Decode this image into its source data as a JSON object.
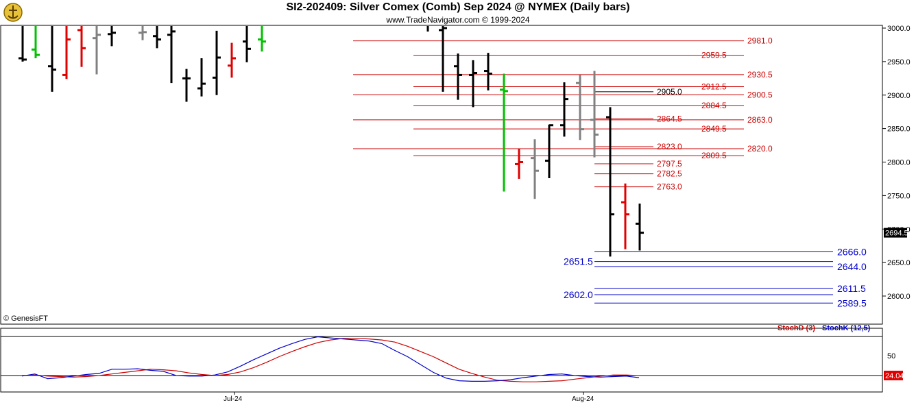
{
  "header": {
    "title": "SI2-202409:  Silver Comex (Comb) Sep 2024 @ NYMEX  (Daily bars)",
    "subtitle": "www.TradeNavigator.com © 1999-2024",
    "watermark": "© GenesisFT"
  },
  "colors": {
    "up": "#000000",
    "down_red": "#e00000",
    "gray": "#808080",
    "green": "#00c000",
    "resistance": "#cc0000",
    "support": "#0000cc",
    "stoch_d": "#cc0000",
    "stoch_k": "#0000cc"
  },
  "chart_data": [
    {
      "type": "ohlc",
      "title": "SI2-202409:  Silver Comex (Comb) Sep 2024 @ NYMEX  (Daily bars)",
      "ylim": [
        2560,
        3010
      ],
      "yticks": [
        "3000.0",
        "2950.0",
        "2900.0",
        "2850.0",
        "2800.0",
        "2750.0",
        "2700.0",
        "2650.0",
        "2600.0"
      ],
      "xticks": [
        "Jul-24",
        "Aug-24"
      ],
      "last_price": "2694.5",
      "bars": [
        {
          "o": 2955,
          "h": 3010,
          "l": 2950,
          "c": 2953,
          "color": "up"
        },
        {
          "o": 2968,
          "h": 3010,
          "l": 2955,
          "c": 2960,
          "color": "green"
        },
        {
          "o": 2943,
          "h": 3010,
          "l": 2905,
          "c": 2938,
          "color": "up"
        },
        {
          "o": 2930,
          "h": 3005,
          "l": 2924,
          "c": 2983,
          "color": "down_red"
        },
        {
          "o": 2997,
          "h": 3005,
          "l": 2942,
          "c": 2970,
          "color": "down_red"
        },
        {
          "o": 2985,
          "h": 3005,
          "l": 2931,
          "c": 2990,
          "color": "gray"
        },
        {
          "o": 2991,
          "h": 3010,
          "l": 2973,
          "c": 2993,
          "color": "up"
        },
        {
          "o": 2993,
          "h": 3010,
          "l": 2982,
          "c": 2994,
          "color": "gray"
        },
        {
          "o": 2988,
          "h": 3010,
          "l": 2970,
          "c": 2983,
          "color": "up"
        },
        {
          "o": 2990,
          "h": 3010,
          "l": 2918,
          "c": 2995,
          "color": "up"
        },
        {
          "o": 2925,
          "h": 2939,
          "l": 2890,
          "c": 2925,
          "color": "up"
        },
        {
          "o": 2910,
          "h": 2955,
          "l": 2898,
          "c": 2917,
          "color": "up"
        },
        {
          "o": 2926,
          "h": 2996,
          "l": 2900,
          "c": 2956,
          "color": "up"
        },
        {
          "o": 2944,
          "h": 2978,
          "l": 2926,
          "c": 2955,
          "color": "down_red"
        },
        {
          "o": 2980,
          "h": 3005,
          "l": 2949,
          "c": 2969,
          "color": "up"
        },
        {
          "o": 2983,
          "h": 3010,
          "l": 2965,
          "c": 2980,
          "color": "green"
        },
        {
          "o": 2997,
          "h": 3010,
          "l": 2905,
          "c": 3000,
          "color": "up"
        },
        {
          "o": 2943,
          "h": 2962,
          "l": 2893,
          "c": 2930,
          "color": "up"
        },
        {
          "o": 2930,
          "h": 2952,
          "l": 2882,
          "c": 2933,
          "color": "up"
        },
        {
          "o": 2936,
          "h": 2963,
          "l": 2907,
          "c": 2932,
          "color": "up"
        },
        {
          "o": 2908,
          "h": 2932,
          "l": 2756,
          "c": 2906,
          "color": "green"
        },
        {
          "o": 2797,
          "h": 2820,
          "l": 2775,
          "c": 2800,
          "color": "down_red"
        },
        {
          "o": 2806,
          "h": 2834,
          "l": 2745,
          "c": 2787,
          "color": "gray"
        },
        {
          "o": 2802,
          "h": 2856,
          "l": 2776,
          "c": 2855,
          "color": "up"
        },
        {
          "o": 2855,
          "h": 2919,
          "l": 2838,
          "c": 2894,
          "color": "up"
        },
        {
          "o": 2918,
          "h": 2930,
          "l": 2833,
          "c": 2849,
          "color": "gray"
        },
        {
          "o": 2863,
          "h": 2936,
          "l": 2807,
          "c": 2841,
          "color": "gray"
        },
        {
          "o": 2867,
          "h": 2882,
          "l": 2659,
          "c": 2722,
          "color": "up"
        },
        {
          "o": 2740,
          "h": 2768,
          "l": 2670,
          "c": 2722,
          "color": "down_red"
        },
        {
          "o": 2708,
          "h": 2738,
          "l": 2668,
          "c": 2694.5,
          "color": "up"
        }
      ]
    },
    {
      "type": "line",
      "series_labels": [
        "StochD (3)",
        "StochK (12,5)"
      ],
      "ylim": [
        0,
        100
      ],
      "yticks": [
        "50"
      ],
      "last_value": "24.04",
      "series": [
        {
          "color": "stoch_d",
          "values": [
            24,
            25,
            23,
            22,
            21,
            22,
            24,
            27,
            30,
            33,
            36,
            35,
            33,
            29,
            26,
            24,
            26,
            31,
            39,
            49,
            60,
            70,
            79,
            87,
            92,
            95,
            95,
            94,
            92,
            88,
            80,
            70,
            60,
            48,
            36,
            28,
            21,
            15,
            13,
            12,
            12,
            13,
            14,
            17,
            20,
            23,
            25,
            25,
            24
          ]
        },
        {
          "color": "stoch_k",
          "values": [
            23,
            27,
            18,
            20,
            23,
            26,
            28,
            36,
            36,
            37,
            34,
            32,
            24,
            23,
            23,
            25,
            31,
            42,
            54,
            65,
            76,
            85,
            93,
            98,
            96,
            94,
            92,
            90,
            85,
            72,
            60,
            45,
            30,
            19,
            14,
            13,
            13,
            14,
            16,
            20,
            23,
            26,
            27,
            24,
            22,
            21,
            22,
            23,
            20
          ]
        }
      ]
    }
  ],
  "levels": {
    "red": [
      {
        "value": 2981.0,
        "label": "2981.0",
        "side": "right"
      },
      {
        "value": 2959.5,
        "label": "2959.5",
        "side": "right"
      },
      {
        "value": 2930.5,
        "label": "2930.5",
        "side": "right"
      },
      {
        "value": 2912.5,
        "label": "2912.5",
        "side": "right"
      },
      {
        "value": 2900.5,
        "label": "2900.5",
        "side": "right"
      },
      {
        "value": 2884.5,
        "label": "2884.5",
        "side": "right"
      },
      {
        "value": 2863.0,
        "label": "2863.0",
        "side": "right"
      },
      {
        "value": 2849.5,
        "label": "2849.5",
        "side": "right"
      },
      {
        "value": 2820.0,
        "label": "2820.0",
        "side": "right"
      },
      {
        "value": 2809.5,
        "label": "2809.5",
        "side": "right"
      },
      {
        "value": 2864.5,
        "label": "2864.5",
        "side": "mid"
      },
      {
        "value": 2823.0,
        "label": "2823.0",
        "side": "mid"
      },
      {
        "value": 2797.5,
        "label": "2797.5",
        "side": "mid"
      },
      {
        "value": 2782.5,
        "label": "2782.5",
        "side": "mid"
      },
      {
        "value": 2763.0,
        "label": "2763.0",
        "side": "mid"
      }
    ],
    "black": [
      {
        "value": 2905.0,
        "label": "2905.0"
      }
    ],
    "blue_right": [
      {
        "value": 2666.0,
        "label": "2666.0"
      },
      {
        "value": 2644.0,
        "label": "2644.0"
      },
      {
        "value": 2611.5,
        "label": "2611.5"
      },
      {
        "value": 2589.5,
        "label": "2589.5"
      }
    ],
    "blue_left": [
      {
        "value": 2651.5,
        "label": "2651.5"
      },
      {
        "value": 2602.0,
        "label": "2602.0"
      }
    ]
  }
}
